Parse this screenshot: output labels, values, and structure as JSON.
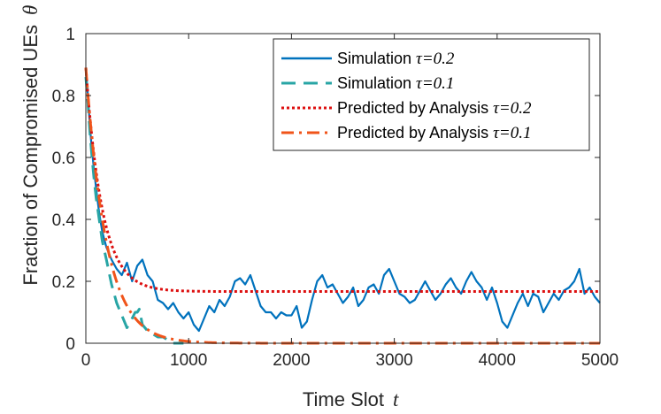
{
  "chart_data": {
    "type": "line",
    "title": "",
    "xlabel": "Time Slot",
    "xlabel_symbol": "t",
    "ylabel": "Fraction of Compromised UEs",
    "ylabel_symbol": "θ",
    "xlim": [
      0,
      5000
    ],
    "ylim": [
      0,
      1
    ],
    "xticks": [
      0,
      1000,
      2000,
      3000,
      4000,
      5000
    ],
    "yticks": [
      0,
      0.2,
      0.4,
      0.6,
      0.8,
      1
    ],
    "xtick_labels": [
      "0",
      "1000",
      "2000",
      "3000",
      "4000",
      "5000"
    ],
    "ytick_labels": [
      "0",
      "0.2",
      "0.4",
      "0.6",
      "0.8",
      "1"
    ],
    "grid": false,
    "legend_position": "top-right",
    "series": [
      {
        "name": "Simulation",
        "param": "τ=0.2",
        "color": "#0072bd",
        "dash": "solid",
        "x": [
          0,
          20,
          40,
          60,
          80,
          100,
          130,
          160,
          200,
          250,
          300,
          350,
          400,
          450,
          500,
          550,
          600,
          650,
          700,
          750,
          800,
          850,
          900,
          950,
          1000,
          1050,
          1100,
          1150,
          1200,
          1250,
          1300,
          1350,
          1400,
          1450,
          1500,
          1550,
          1600,
          1650,
          1700,
          1750,
          1800,
          1850,
          1900,
          1950,
          2000,
          2050,
          2100,
          2150,
          2200,
          2250,
          2300,
          2350,
          2400,
          2450,
          2500,
          2550,
          2600,
          2650,
          2700,
          2750,
          2800,
          2850,
          2900,
          2950,
          3000,
          3050,
          3100,
          3150,
          3200,
          3250,
          3300,
          3350,
          3400,
          3450,
          3500,
          3550,
          3600,
          3650,
          3700,
          3750,
          3800,
          3850,
          3900,
          3950,
          4000,
          4050,
          4100,
          4150,
          4200,
          4250,
          4300,
          4350,
          4400,
          4450,
          4500,
          4550,
          4600,
          4650,
          4700,
          4750,
          4800,
          4850,
          4900,
          4950,
          5000
        ],
        "y": [
          0.89,
          0.8,
          0.7,
          0.62,
          0.56,
          0.5,
          0.42,
          0.36,
          0.31,
          0.27,
          0.24,
          0.22,
          0.26,
          0.2,
          0.25,
          0.27,
          0.22,
          0.2,
          0.14,
          0.13,
          0.11,
          0.13,
          0.1,
          0.08,
          0.1,
          0.06,
          0.04,
          0.08,
          0.12,
          0.1,
          0.14,
          0.12,
          0.15,
          0.2,
          0.21,
          0.19,
          0.22,
          0.17,
          0.12,
          0.1,
          0.1,
          0.08,
          0.1,
          0.09,
          0.09,
          0.12,
          0.05,
          0.07,
          0.14,
          0.2,
          0.22,
          0.18,
          0.19,
          0.16,
          0.13,
          0.15,
          0.18,
          0.12,
          0.14,
          0.18,
          0.19,
          0.16,
          0.22,
          0.24,
          0.2,
          0.16,
          0.15,
          0.13,
          0.14,
          0.17,
          0.2,
          0.17,
          0.14,
          0.16,
          0.19,
          0.21,
          0.18,
          0.16,
          0.2,
          0.23,
          0.2,
          0.18,
          0.14,
          0.18,
          0.13,
          0.07,
          0.05,
          0.09,
          0.13,
          0.16,
          0.12,
          0.16,
          0.15,
          0.1,
          0.13,
          0.16,
          0.14,
          0.17,
          0.18,
          0.2,
          0.24,
          0.16,
          0.18,
          0.15,
          0.13
        ]
      },
      {
        "name": "Simulation",
        "param": "τ=0.1",
        "color": "#28a5a5",
        "dash": "dashed",
        "x": [
          0,
          20,
          40,
          60,
          80,
          100,
          130,
          160,
          200,
          250,
          300,
          350,
          400,
          450,
          480,
          500,
          520,
          550,
          600,
          650,
          700,
          750,
          800,
          850,
          900,
          950
        ],
        "y": [
          0.86,
          0.78,
          0.68,
          0.6,
          0.53,
          0.47,
          0.4,
          0.33,
          0.27,
          0.19,
          0.13,
          0.09,
          0.05,
          0.08,
          0.1,
          0.1,
          0.11,
          0.06,
          0.04,
          0.03,
          0.02,
          0.02,
          0.01,
          0.0,
          0.0,
          0.0
        ]
      },
      {
        "name": "Predicted by Analysis",
        "param": "τ=0.2",
        "color": "#dd0f0f",
        "dash": "dotted",
        "model": {
          "steady": 0.167,
          "start": 0.89,
          "tau_t": 160
        }
      },
      {
        "name": "Predicted by Analysis",
        "param": "τ=0.1",
        "color": "#f0541a",
        "dash": "dashdot",
        "model": {
          "steady": 0.0,
          "start": 0.89,
          "tau_t": 200
        }
      }
    ]
  }
}
